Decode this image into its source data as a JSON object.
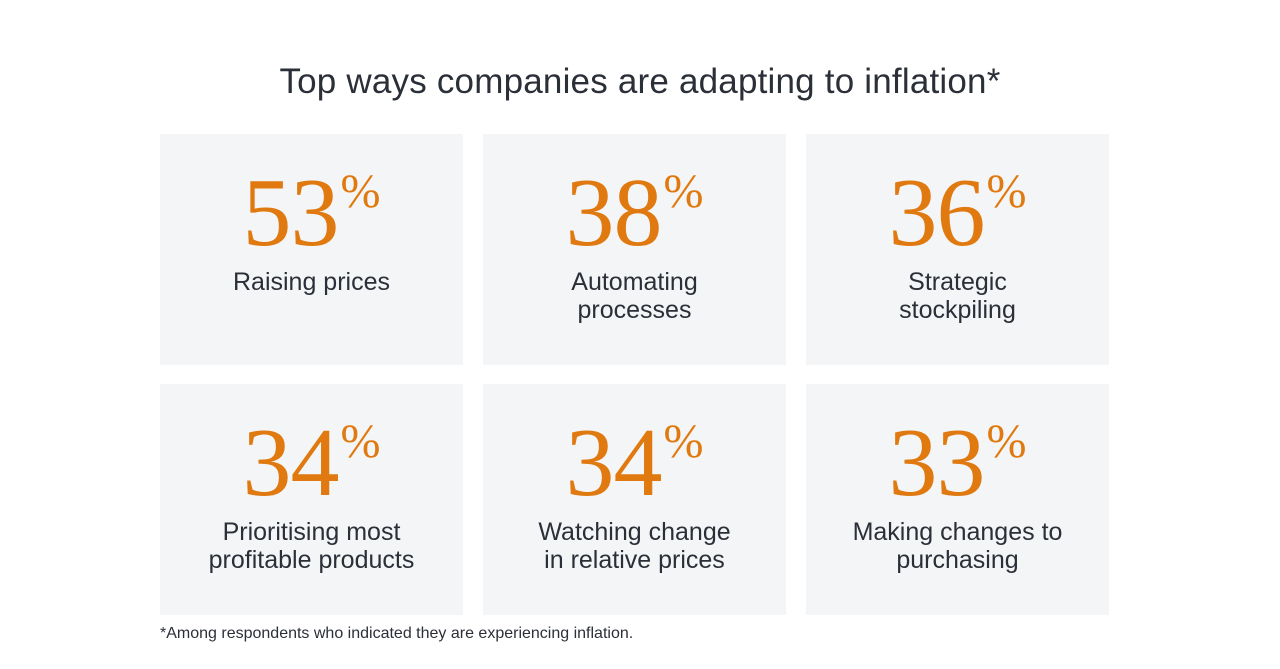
{
  "title": "Top ways companies are adapting to inflation*",
  "stats": [
    {
      "value": "53",
      "unit": "%",
      "label": "Raising prices"
    },
    {
      "value": "38",
      "unit": "%",
      "label": "Automating\nprocesses"
    },
    {
      "value": "36",
      "unit": "%",
      "label": "Strategic\nstockpiling"
    },
    {
      "value": "34",
      "unit": "%",
      "label": "Prioritising most\nprofitable products"
    },
    {
      "value": "34",
      "unit": "%",
      "label": "Watching change\nin relative prices"
    },
    {
      "value": "33",
      "unit": "%",
      "label": "Making changes to\npurchasing"
    }
  ],
  "footnote": "*Among respondents who indicated they are experiencing inflation.",
  "colors": {
    "accent": "#e07a10",
    "card_background": "#f4f5f6",
    "text": "#2b2f38"
  }
}
